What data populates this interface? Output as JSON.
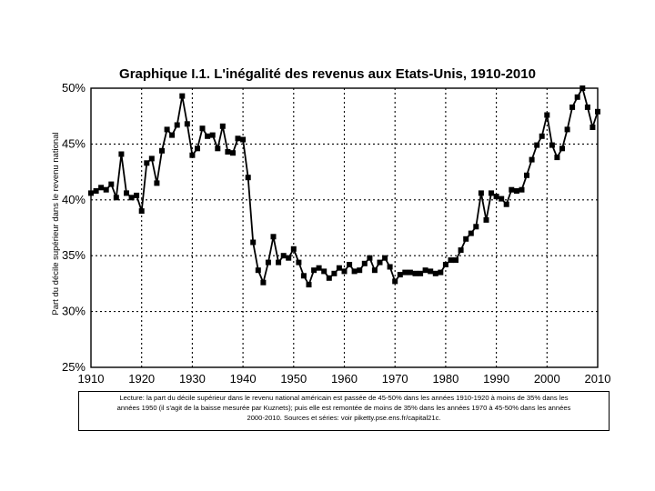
{
  "chart_data": {
    "type": "line",
    "title": "Graphique I.1. L'inégalité des revenus aux Etats-Unis, 1910-2010",
    "xlabel": "",
    "ylabel": "Part du décile supérieur dans le revenu national",
    "xlim": [
      1910,
      2010
    ],
    "ylim": [
      25,
      50
    ],
    "x_ticks": [
      1910,
      1920,
      1930,
      1940,
      1950,
      1960,
      1970,
      1980,
      1990,
      2000,
      2010
    ],
    "x_tick_labels": [
      "1910",
      "1920",
      "1930",
      "1940",
      "1950",
      "1960",
      "1970",
      "1980",
      "1990",
      "2000",
      "2010"
    ],
    "y_ticks": [
      25,
      30,
      35,
      40,
      45,
      50
    ],
    "y_tick_labels": [
      "25%",
      "30%",
      "35%",
      "40%",
      "45%",
      "50%"
    ],
    "grid": true,
    "series": [
      {
        "name": "Part du décile supérieur",
        "x": [
          1910,
          1911,
          1912,
          1913,
          1914,
          1915,
          1916,
          1917,
          1918,
          1919,
          1920,
          1921,
          1922,
          1923,
          1924,
          1925,
          1926,
          1927,
          1928,
          1929,
          1930,
          1931,
          1932,
          1933,
          1934,
          1935,
          1936,
          1937,
          1938,
          1939,
          1940,
          1941,
          1942,
          1943,
          1944,
          1945,
          1946,
          1947,
          1948,
          1949,
          1950,
          1951,
          1952,
          1953,
          1954,
          1955,
          1956,
          1957,
          1958,
          1959,
          1960,
          1961,
          1962,
          1963,
          1964,
          1965,
          1966,
          1967,
          1968,
          1969,
          1970,
          1971,
          1972,
          1973,
          1974,
          1975,
          1976,
          1977,
          1978,
          1979,
          1980,
          1981,
          1982,
          1983,
          1984,
          1985,
          1986,
          1987,
          1988,
          1989,
          1990,
          1991,
          1992,
          1993,
          1994,
          1995,
          1996,
          1997,
          1998,
          1999,
          2000,
          2001,
          2002,
          2003,
          2004,
          2005,
          2006,
          2007,
          2008,
          2009,
          2010
        ],
        "values": [
          40.6,
          40.8,
          41.1,
          40.9,
          41.4,
          40.2,
          44.1,
          40.6,
          40.2,
          40.4,
          39.0,
          43.3,
          43.7,
          41.5,
          44.4,
          46.3,
          45.8,
          46.7,
          49.3,
          46.8,
          44.0,
          44.6,
          46.4,
          45.7,
          45.8,
          44.6,
          46.6,
          44.3,
          44.2,
          45.5,
          45.4,
          42.0,
          36.2,
          33.7,
          32.6,
          34.4,
          36.7,
          34.4,
          35.0,
          34.8,
          35.6,
          34.4,
          33.2,
          32.4,
          33.7,
          33.9,
          33.6,
          33.0,
          33.4,
          33.9,
          33.6,
          34.2,
          33.6,
          33.7,
          34.3,
          34.8,
          33.7,
          34.4,
          34.8,
          34.0,
          32.7,
          33.3,
          33.5,
          33.5,
          33.4,
          33.4,
          33.7,
          33.6,
          33.4,
          33.5,
          34.2,
          34.6,
          34.6,
          35.5,
          36.5,
          37.0,
          37.6,
          40.6,
          38.2,
          40.6,
          40.3,
          40.1,
          39.6,
          40.9,
          40.8,
          40.9,
          42.2,
          43.6,
          44.9,
          45.7,
          47.6,
          44.9,
          43.8,
          44.6,
          46.3,
          48.3,
          49.2,
          50.0,
          48.3,
          46.5,
          47.9
        ]
      }
    ],
    "note_lines": [
      "Lecture: la part du décile supérieur dans le revenu national américain est passée de 45-50% dans les années 1910-1920 à moins de 35% dans les",
      "années 1950 (il s'agit de la baisse mesurée par Kuznets); puis elle est remontée de moins de 35% dans les années 1970 à 45-50% dans les années",
      "2000-2010. Sources et séries: voir piketty.pse.ens.fr/capital21c."
    ]
  }
}
